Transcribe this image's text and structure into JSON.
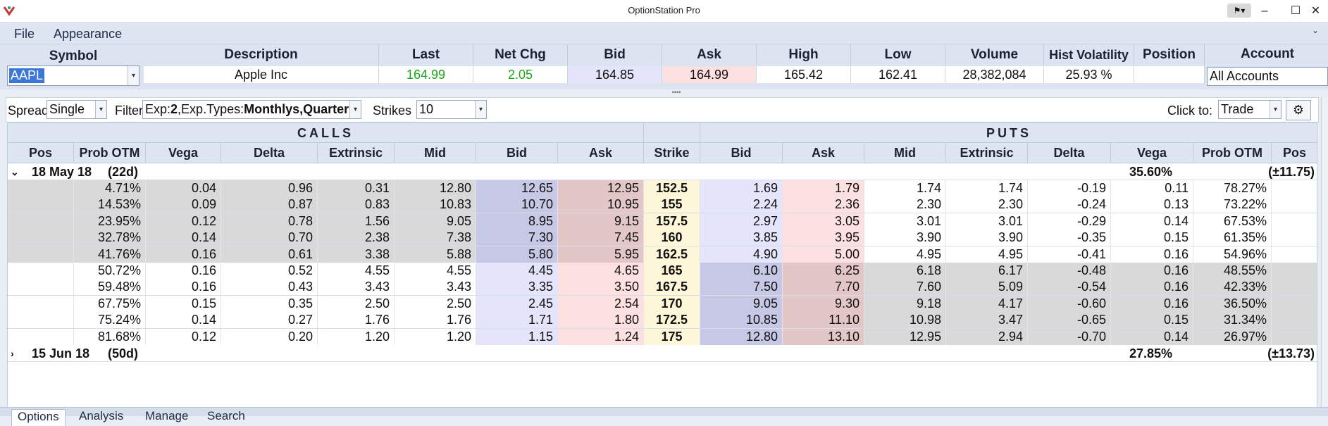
{
  "window": {
    "title": "OptionStation Pro",
    "controls": [
      "–",
      "☐",
      "✕"
    ]
  },
  "menu": [
    "File",
    "Appearance"
  ],
  "quote": {
    "symbol_label": "Symbol",
    "symbol_value": "AAPL",
    "headers": [
      "Description",
      "Last",
      "Net Chg",
      "Bid",
      "Ask",
      "High",
      "Low",
      "Volume",
      "Hist Volatility",
      "Position"
    ],
    "values": [
      "Apple Inc",
      "164.99",
      "2.05",
      "164.85",
      "164.99",
      "165.42",
      "162.41",
      "28,382,084",
      "25.93 %",
      ""
    ],
    "account_label": "Account",
    "account_value": "All Accounts"
  },
  "toolbar": {
    "spread_label": "Spread",
    "spread_value": "Single",
    "filter_label": "Filter",
    "filter_prefix": "Exp:",
    "filter_exp_count": "2",
    "filter_mid": ",Exp.Types:",
    "filter_types": "Monthlys,Quarterlys",
    "strikes_label": "Strikes",
    "strikes_value": "10",
    "clickto_label": "Click to:",
    "clickto_value": "Trade"
  },
  "grid": {
    "calls_title": "CALLS",
    "puts_title": "PUTS",
    "columns": [
      "Pos",
      "Prob OTM",
      "Vega",
      "Delta",
      "Extrinsic",
      "Mid",
      "Bid",
      "Ask",
      "Strike",
      "Bid",
      "Ask",
      "Mid",
      "Extrinsic",
      "Delta",
      "Vega",
      "Prob OTM",
      "Pos"
    ],
    "expirations": [
      {
        "label": "18 May 18",
        "days": "(22d)",
        "prob": "35.60%",
        "range": "(±11.75)",
        "expanded": true
      },
      {
        "label": "15 Jun 18",
        "days": "(50d)",
        "prob": "27.85%",
        "range": "(±13.73)",
        "expanded": false
      }
    ],
    "rows": [
      {
        "itm_call": true,
        "cells": [
          "",
          "4.71%",
          "0.04",
          "0.96",
          "0.31",
          "12.80",
          "12.65",
          "12.95",
          "152.5",
          "1.69",
          "1.79",
          "1.74",
          "1.74",
          "-0.19",
          "0.11",
          "78.27%",
          ""
        ]
      },
      {
        "itm_call": true,
        "cells": [
          "",
          "14.53%",
          "0.09",
          "0.87",
          "0.83",
          "10.83",
          "10.70",
          "10.95",
          "155",
          "2.24",
          "2.36",
          "2.30",
          "2.30",
          "-0.24",
          "0.13",
          "73.22%",
          ""
        ]
      },
      {
        "itm_call": true,
        "cells": [
          "",
          "23.95%",
          "0.12",
          "0.78",
          "1.56",
          "9.05",
          "8.95",
          "9.15",
          "157.5",
          "2.97",
          "3.05",
          "3.01",
          "3.01",
          "-0.29",
          "0.14",
          "67.53%",
          ""
        ]
      },
      {
        "itm_call": true,
        "cells": [
          "",
          "32.78%",
          "0.14",
          "0.70",
          "2.38",
          "7.38",
          "7.30",
          "7.45",
          "160",
          "3.85",
          "3.95",
          "3.90",
          "3.90",
          "-0.35",
          "0.15",
          "61.35%",
          ""
        ]
      },
      {
        "itm_call": true,
        "cells": [
          "",
          "41.76%",
          "0.16",
          "0.61",
          "3.38",
          "5.88",
          "5.80",
          "5.95",
          "162.5",
          "4.90",
          "5.00",
          "4.95",
          "4.95",
          "-0.41",
          "0.16",
          "54.96%",
          ""
        ]
      },
      {
        "itm_call": false,
        "cells": [
          "",
          "50.72%",
          "0.16",
          "0.52",
          "4.55",
          "4.55",
          "4.45",
          "4.65",
          "165",
          "6.10",
          "6.25",
          "6.18",
          "6.17",
          "-0.48",
          "0.16",
          "48.55%",
          ""
        ]
      },
      {
        "itm_call": false,
        "cells": [
          "",
          "59.48%",
          "0.16",
          "0.43",
          "3.43",
          "3.43",
          "3.35",
          "3.50",
          "167.5",
          "7.50",
          "7.70",
          "7.60",
          "5.09",
          "-0.54",
          "0.16",
          "42.33%",
          ""
        ]
      },
      {
        "itm_call": false,
        "cells": [
          "",
          "67.75%",
          "0.15",
          "0.35",
          "2.50",
          "2.50",
          "2.45",
          "2.54",
          "170",
          "9.05",
          "9.30",
          "9.18",
          "4.17",
          "-0.60",
          "0.16",
          "36.50%",
          ""
        ]
      },
      {
        "itm_call": false,
        "cells": [
          "",
          "75.24%",
          "0.14",
          "0.27",
          "1.76",
          "1.76",
          "1.71",
          "1.80",
          "172.5",
          "10.85",
          "11.10",
          "10.98",
          "3.47",
          "-0.65",
          "0.15",
          "31.34%",
          ""
        ]
      },
      {
        "itm_call": false,
        "cells": [
          "",
          "81.68%",
          "0.12",
          "0.20",
          "1.20",
          "1.20",
          "1.15",
          "1.24",
          "175",
          "12.80",
          "13.10",
          "12.95",
          "2.94",
          "-0.70",
          "0.14",
          "26.97%",
          ""
        ]
      }
    ]
  },
  "tabs": [
    "Options",
    "Analysis",
    "Manage",
    "Search"
  ],
  "colors": {
    "last": "#1aa61a",
    "netchg": "#1aa61a",
    "bid": "#e4e4fb",
    "ask": "#fde0e0",
    "itm": "#d9d9d9",
    "itm_bid": "#c7c7e6",
    "itm_ask": "#e3c6c6",
    "strike": "#fdf6d8"
  }
}
